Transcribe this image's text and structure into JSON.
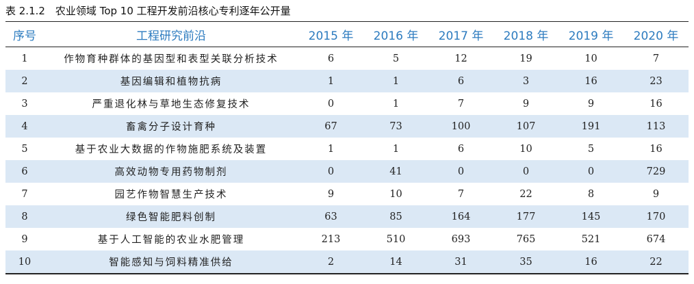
{
  "title": "表 2.1.2　农业领域 Top 10 工程开发前沿核心专利逐年公开量",
  "table": {
    "header": [
      "序号",
      "工程研究前沿",
      "2015 年",
      "2016 年",
      "2017 年",
      "2018 年",
      "2019 年",
      "2020 年"
    ],
    "rows": [
      [
        1,
        "作物育种群体的基因型和表型关联分析技术",
        6,
        5,
        12,
        19,
        10,
        7
      ],
      [
        2,
        "基因编辑和植物抗病",
        1,
        1,
        6,
        3,
        16,
        23
      ],
      [
        3,
        "严重退化林与草地生态修复技术",
        0,
        1,
        7,
        9,
        9,
        16
      ],
      [
        4,
        "畜禽分子设计育种",
        67,
        73,
        100,
        107,
        191,
        113
      ],
      [
        5,
        "基于农业大数据的作物施肥系统及装置",
        1,
        1,
        6,
        10,
        5,
        16
      ],
      [
        6,
        "高效动物专用药物制剂",
        0,
        41,
        0,
        0,
        0,
        729
      ],
      [
        7,
        "园艺作物智慧生产技术",
        9,
        10,
        7,
        22,
        8,
        9
      ],
      [
        8,
        "绿色智能肥料创制",
        63,
        85,
        164,
        177,
        145,
        170
      ],
      [
        9,
        "基于人工智能的农业水肥管理",
        213,
        510,
        693,
        765,
        521,
        674
      ],
      [
        10,
        "智能感知与饲料精准供给",
        2,
        14,
        31,
        35,
        16,
        22
      ]
    ]
  }
}
